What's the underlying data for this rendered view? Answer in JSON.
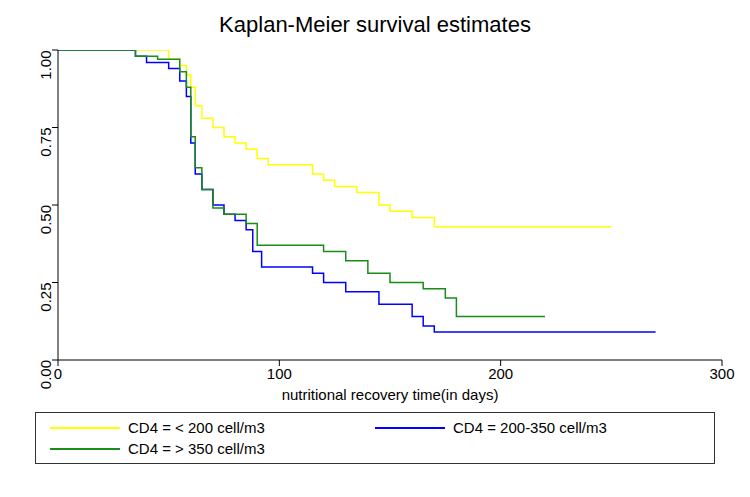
{
  "chart_data": {
    "type": "line",
    "title": "Kaplan-Meier survival estimates",
    "x_label": "nutritional recovery time(in days)",
    "xlim": [
      0,
      300
    ],
    "xticks": [
      0,
      100,
      200,
      300
    ],
    "ylim": [
      0,
      1
    ],
    "yticks": [
      {
        "value": 0,
        "label": "0.00"
      },
      {
        "value": 0.25,
        "label": "0.25"
      },
      {
        "value": 0.5,
        "label": "0.50"
      },
      {
        "value": 0.75,
        "label": "0.75"
      },
      {
        "value": 1,
        "label": "1.00"
      }
    ],
    "grid": false,
    "legend": "bottom",
    "line_style": "step",
    "series": [
      {
        "name": "CD4 = < 200 cell/m3",
        "color": "#ffff00",
        "x": [
          0,
          30,
          50,
          55,
          58,
          60,
          62,
          65,
          70,
          75,
          80,
          85,
          90,
          95,
          115,
          120,
          125,
          135,
          145,
          150,
          160,
          170,
          250
        ],
        "values": [
          1,
          1,
          0.97,
          0.95,
          0.92,
          0.88,
          0.82,
          0.78,
          0.75,
          0.72,
          0.7,
          0.68,
          0.65,
          0.63,
          0.6,
          0.58,
          0.56,
          0.54,
          0.5,
          0.48,
          0.46,
          0.43,
          0.43
        ]
      },
      {
        "name": "CD4 = 200-350 cell/m3",
        "color": "#0000ff",
        "x": [
          0,
          30,
          35,
          40,
          50,
          55,
          58,
          60,
          62,
          65,
          70,
          75,
          80,
          85,
          88,
          92,
          115,
          120,
          130,
          145,
          160,
          165,
          170,
          270
        ],
        "values": [
          1,
          1,
          0.98,
          0.96,
          0.94,
          0.9,
          0.85,
          0.7,
          0.6,
          0.55,
          0.5,
          0.47,
          0.45,
          0.42,
          0.35,
          0.3,
          0.28,
          0.25,
          0.22,
          0.18,
          0.14,
          0.11,
          0.09,
          0.09
        ]
      },
      {
        "name": "CD4 = > 350 cell/m3",
        "color": "#1a8c1a",
        "x": [
          0,
          30,
          35,
          45,
          55,
          58,
          60,
          62,
          65,
          70,
          75,
          85,
          90,
          120,
          130,
          140,
          150,
          165,
          175,
          180,
          220
        ],
        "values": [
          1,
          1,
          0.98,
          0.97,
          0.93,
          0.88,
          0.72,
          0.62,
          0.55,
          0.49,
          0.47,
          0.44,
          0.37,
          0.35,
          0.32,
          0.28,
          0.25,
          0.23,
          0.2,
          0.14,
          0.14
        ]
      }
    ]
  }
}
